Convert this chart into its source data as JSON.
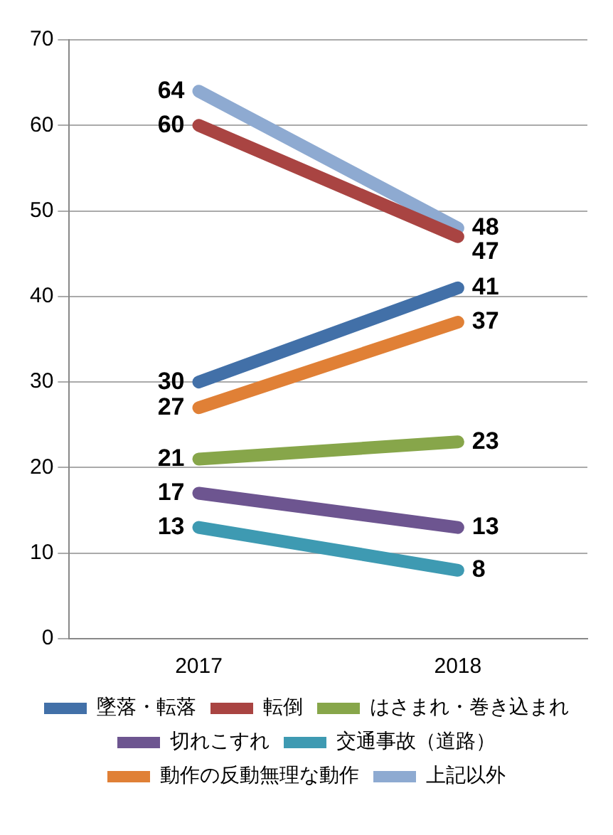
{
  "chart_data": {
    "type": "line",
    "categories": [
      "2017",
      "2018"
    ],
    "series": [
      {
        "name": "墜落・転落",
        "color": "#4270a8",
        "values": [
          30,
          41
        ]
      },
      {
        "name": "転倒",
        "color": "#a94442",
        "values": [
          60,
          47
        ]
      },
      {
        "name": "はさまれ・巻き込まれ",
        "color": "#87a64a",
        "values": [
          21,
          23
        ]
      },
      {
        "name": "切れこすれ",
        "color": "#6d5590",
        "values": [
          17,
          13
        ]
      },
      {
        "name": "交通事故（道路）",
        "color": "#3e9ab2",
        "values": [
          13,
          8
        ]
      },
      {
        "name": "動作の反動無理な動作",
        "color": "#e08036",
        "values": [
          27,
          37
        ]
      },
      {
        "name": "上記以外",
        "color": "#8eaad1",
        "values": [
          64,
          48
        ]
      }
    ],
    "ylim": [
      0,
      70
    ],
    "yticks": [
      0,
      10,
      20,
      30,
      40,
      50,
      60,
      70
    ],
    "grid": "y",
    "legend": "bottom",
    "marker": "none",
    "line_style": "solid",
    "data_labels": true
  }
}
